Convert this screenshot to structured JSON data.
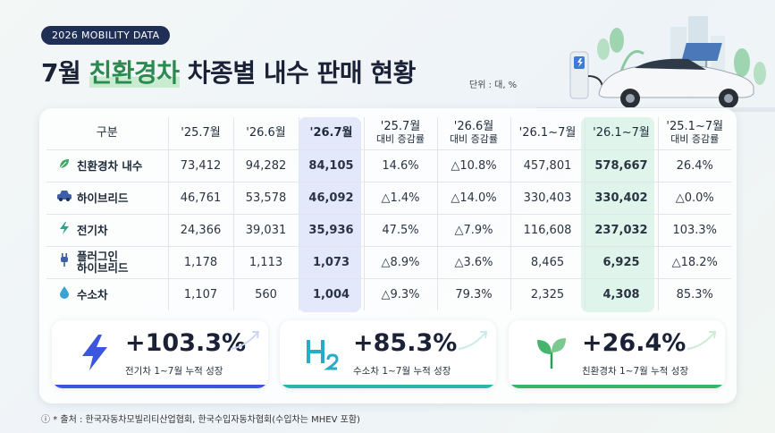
{
  "badge": "2026 MOBILITY DATA",
  "title": {
    "prefix": "7월 ",
    "highlight": "친환경차",
    "suffix": " 차종별 내수 판매 현황"
  },
  "unit": "단위 : 대, %",
  "table": {
    "headers": [
      {
        "top": "구분",
        "sub": ""
      },
      {
        "top": "'25.7월",
        "sub": ""
      },
      {
        "top": "'26.6월",
        "sub": ""
      },
      {
        "top": "'26.7월",
        "sub": ""
      },
      {
        "top": "'25.7월",
        "sub": "대비 증감률"
      },
      {
        "top": "'26.6월",
        "sub": "대비 증감률"
      },
      {
        "top": "'26.1~7월",
        "sub": ""
      },
      {
        "top": "'26.1~7월",
        "sub": ""
      },
      {
        "top": "'25.1~7월",
        "sub": "대비 증감률"
      }
    ],
    "rows": [
      {
        "icon": "leaf-icon",
        "name": [
          "친환경차 내수"
        ],
        "c1": "73,412",
        "c2": "94,282",
        "c3": "84,105",
        "c4": "14.6%",
        "c5": "△10.8%",
        "c6": "457,801",
        "c7": "578,667",
        "c8": "26.4%"
      },
      {
        "icon": "car-icon",
        "name": [
          "하이브리드"
        ],
        "c1": "46,761",
        "c2": "53,578",
        "c3": "46,092",
        "c4": "△1.4%",
        "c5": "△14.0%",
        "c6": "330,403",
        "c7": "330,402",
        "c8": "△0.0%"
      },
      {
        "icon": "lightning-icon",
        "name": [
          "전기차"
        ],
        "c1": "24,366",
        "c2": "39,031",
        "c3": "35,936",
        "c4": "47.5%",
        "c5": "△7.9%",
        "c6": "116,608",
        "c7": "237,032",
        "c8": "103.3%"
      },
      {
        "icon": "plug-icon",
        "name": [
          "플러그인",
          "하이브리드"
        ],
        "c1": "1,178",
        "c2": "1,113",
        "c3": "1,073",
        "c4": "△8.9%",
        "c5": "△3.6%",
        "c6": "8,465",
        "c7": "6,925",
        "c8": "△18.2%"
      },
      {
        "icon": "drop-icon",
        "name": [
          "수소차"
        ],
        "c1": "1,107",
        "c2": "560",
        "c3": "1,004",
        "c4": "△9.3%",
        "c5": "79.3%",
        "c6": "2,325",
        "c7": "4,308",
        "c8": "85.3%"
      }
    ]
  },
  "kpis": [
    {
      "icon": "lightning-icon",
      "value": "+103.3%",
      "caption": "전기차 1~7월 누적 성장",
      "color": "#3d56e0"
    },
    {
      "icon": "h2-icon",
      "value": "+85.3%",
      "caption": "수소차 1~7월 누적 성장",
      "color": "#2cb5ac"
    },
    {
      "icon": "sprout-icon",
      "value": "+26.4%",
      "caption": "친환경차 1~7월 누적 성장",
      "color": "#38b56a"
    }
  ],
  "source": "* 출처 : 한국자동차모빌리티산업협회, 한국수입자동차협회(수입차는 MHEV 포함)"
}
